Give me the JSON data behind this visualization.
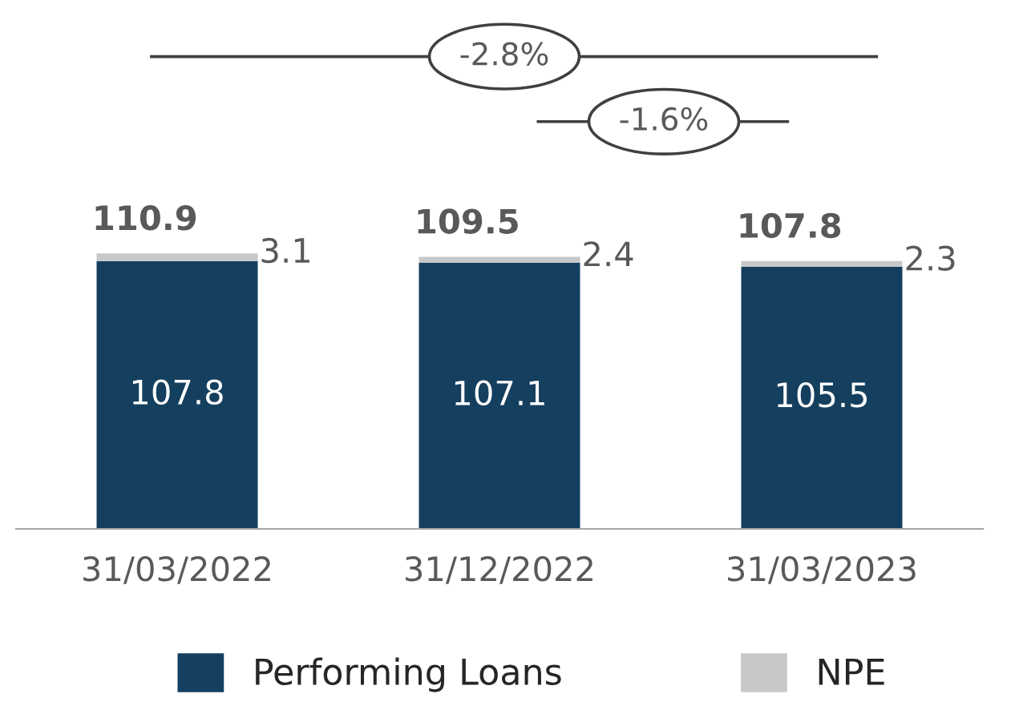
{
  "chart_data": {
    "type": "bar",
    "stacked": true,
    "data_labels": true,
    "legend": "bottom",
    "grid": false,
    "categories": [
      "31/03/2022",
      "31/12/2022",
      "31/03/2023"
    ],
    "series": [
      {
        "name": "Performing Loans",
        "color": "#153f5f",
        "values": [
          107.8,
          107.1,
          105.5
        ]
      },
      {
        "name": "NPE",
        "color": "#c8c8c8",
        "values": [
          3.1,
          2.4,
          2.3
        ]
      }
    ],
    "totals": [
      "110.9",
      "109.5",
      "107.8"
    ],
    "annotations": [
      "-2.8%",
      "-1.6%"
    ]
  }
}
